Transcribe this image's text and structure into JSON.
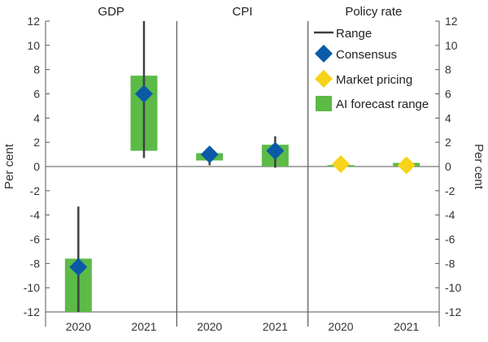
{
  "chart_data": {
    "type": "range-bar",
    "ylabel_left": "Per cent",
    "ylabel_right": "Per cent",
    "ylim": [
      -12,
      12
    ],
    "yticks": [
      -12,
      -10,
      -8,
      -6,
      -4,
      -2,
      0,
      2,
      4,
      6,
      8,
      10,
      12
    ],
    "panels": [
      {
        "title": "GDP",
        "categories": [
          "2020",
          "2021"
        ],
        "range_low": [
          -12,
          0.7
        ],
        "range_high": [
          -3.3,
          12
        ],
        "ai_forecast_low": [
          -12,
          1.3
        ],
        "ai_forecast_high": [
          -7.6,
          7.5
        ],
        "consensus": [
          -8.3,
          6.0
        ],
        "market_pricing": [
          null,
          null
        ]
      },
      {
        "title": "CPI",
        "categories": [
          "2020",
          "2021"
        ],
        "range_low": [
          0.1,
          -0.1
        ],
        "range_high": [
          1.2,
          2.5
        ],
        "ai_forecast_low": [
          0.5,
          0.0
        ],
        "ai_forecast_high": [
          1.1,
          1.8
        ],
        "consensus": [
          1.0,
          1.3
        ],
        "market_pricing": [
          null,
          null
        ]
      },
      {
        "title": "Policy rate",
        "categories": [
          "2020",
          "2021"
        ],
        "range_low": [
          0.0,
          0.0
        ],
        "range_high": [
          0.25,
          0.35
        ],
        "ai_forecast_low": [
          0.05,
          0.0
        ],
        "ai_forecast_high": [
          0.12,
          0.3
        ],
        "consensus": [
          null,
          null
        ],
        "market_pricing": [
          0.2,
          0.1
        ]
      }
    ],
    "legend": {
      "placement": "top-right",
      "items": [
        {
          "key": "range",
          "label": "Range"
        },
        {
          "key": "consensus",
          "label": "Consensus"
        },
        {
          "key": "market",
          "label": "Market pricing"
        },
        {
          "key": "ai",
          "label": "AI forecast range"
        }
      ]
    },
    "colors": {
      "range": "#404040",
      "consensus": "#0b5aa8",
      "market": "#f7d31a",
      "ai": "#5cba47",
      "axis": "#555555",
      "divider": "#555555"
    },
    "grid": false
  }
}
